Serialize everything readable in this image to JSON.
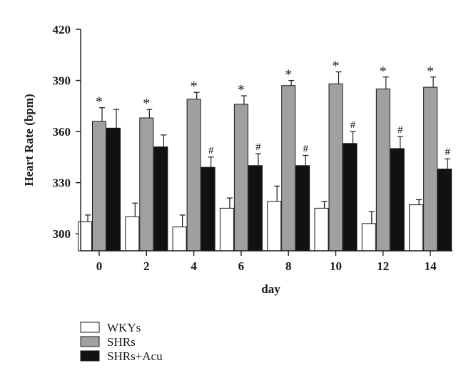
{
  "chart_data": {
    "type": "bar",
    "ylabel": "Heart Rate (bpm)",
    "xlabel": "day",
    "ylim": [
      290,
      420
    ],
    "yticks": [
      300,
      330,
      360,
      390,
      420
    ],
    "categories": [
      "0",
      "2",
      "4",
      "6",
      "8",
      "10",
      "12",
      "14"
    ],
    "grid": false,
    "legend_position": "bottom-left",
    "series": [
      {
        "name": "WKYs",
        "color": "#ffffff",
        "values": [
          307,
          310,
          304,
          315,
          319,
          315,
          306,
          317
        ],
        "errors": [
          4,
          8,
          7,
          6,
          9,
          4,
          7,
          3
        ],
        "markers": [
          "",
          "",
          "",
          "",
          "",
          "",
          "",
          ""
        ]
      },
      {
        "name": "SHRs",
        "color": "#a0a0a0",
        "values": [
          366,
          368,
          379,
          376,
          387,
          388,
          385,
          386
        ],
        "errors": [
          8,
          5,
          4,
          5,
          3,
          7,
          7,
          6
        ],
        "markers": [
          "*",
          "*",
          "*",
          "*",
          "*",
          "*",
          "*",
          "*"
        ]
      },
      {
        "name": "SHRs+Acu",
        "color": "#111111",
        "values": [
          362,
          351,
          339,
          340,
          340,
          353,
          350,
          338
        ],
        "errors": [
          11,
          7,
          6,
          7,
          6,
          7,
          7,
          6
        ],
        "markers": [
          "",
          "",
          "#",
          "#",
          "#",
          "#",
          "#",
          "#"
        ]
      }
    ]
  }
}
